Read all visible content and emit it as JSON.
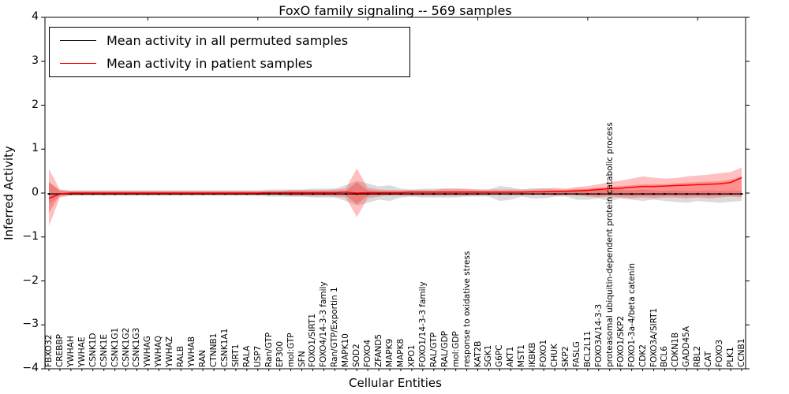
{
  "title": "FoxO family signaling -- 569 samples",
  "legend": {
    "items": [
      {
        "label": "Mean activity in all permuted samples",
        "color": "#000000"
      },
      {
        "label": "Mean activity in patient samples",
        "color": "#ff0000"
      }
    ],
    "position": "upper left"
  },
  "colors": {
    "permuted_line": "#000000",
    "patient_line": "#ff0000",
    "permuted_band": "#999999",
    "patient_band": "#ff3030",
    "axis": "#000000",
    "background": "#ffffff"
  },
  "chart_data": {
    "type": "line",
    "title": "FoxO family signaling -- 569 samples",
    "xlabel": "Cellular Entities",
    "ylabel": "Inferred Activity",
    "ylim": [
      -4,
      4
    ],
    "yticks": [
      4,
      3,
      2,
      1,
      0,
      -1,
      -2,
      -3,
      -4
    ],
    "ytick_labels": [
      "4",
      "3",
      "2",
      "1",
      "0",
      "−1",
      "−2",
      "−3",
      "−4"
    ],
    "grid": false,
    "legend_position": "upper left",
    "categories": [
      "FBXO32",
      "CREBBP",
      "YWHAH",
      "YWHAE",
      "CSNK1D",
      "CSNK1E",
      "CSNK1G1",
      "CSNK1G2",
      "CSNK1G3",
      "YWHAG",
      "YWHAQ",
      "YWHAZ",
      "RALB",
      "YWHAB",
      "RAN",
      "CTNNB1",
      "CSNK1A1",
      "SIRT1",
      "RALA",
      "USP7",
      "Ran/GTP",
      "EP300",
      "mol:GTP",
      "SFN",
      "FOXO1/SIRT1",
      "FOXO4/14-3-3 family",
      "Ran/GTP/Exportin 1",
      "MAPK10",
      "SOD2",
      "FOXO4",
      "ZFAND5",
      "MAPK9",
      "MAPK8",
      "XPO1",
      "FOXO1/14-3-3 family",
      "RAL/GTP",
      "RAL/GDP",
      "mol:GDP",
      "response to oxidative stress",
      "KAT2B",
      "SGK1",
      "G6PC",
      "AKT1",
      "MST1",
      "IKBKB",
      "FOXO1",
      "CHUK",
      "SKP2",
      "FASLG",
      "BCL2L11",
      "FOXO3A/14-3-3",
      "proteasomal ubiquitin-dependent protein catabolic process",
      "FOXO1/SKP2",
      "FOXO1-3a-4/beta catenin",
      "CDK2",
      "FOXO3A/SIRT1",
      "BCL6",
      "CDKN1B",
      "GADD45A",
      "RBL2",
      "CAT",
      "FOXO3",
      "PLK1",
      "CCNB1"
    ],
    "series": [
      {
        "name": "Mean activity in all permuted samples",
        "color": "#000000",
        "values": [
          -0.02,
          -0.02,
          -0.02,
          -0.02,
          -0.02,
          -0.02,
          -0.02,
          -0.02,
          -0.02,
          -0.02,
          -0.02,
          -0.02,
          -0.02,
          -0.02,
          -0.02,
          -0.02,
          -0.02,
          -0.02,
          -0.02,
          -0.02,
          -0.02,
          -0.02,
          -0.02,
          -0.02,
          -0.02,
          -0.02,
          -0.02,
          -0.02,
          -0.02,
          -0.02,
          -0.02,
          -0.02,
          -0.02,
          -0.02,
          -0.02,
          -0.02,
          -0.02,
          -0.02,
          -0.02,
          -0.02,
          -0.02,
          -0.02,
          -0.02,
          -0.02,
          -0.02,
          -0.02,
          -0.02,
          -0.02,
          -0.02,
          -0.02,
          -0.02,
          -0.02,
          -0.02,
          -0.02,
          -0.02,
          -0.02,
          -0.02,
          -0.02,
          -0.02,
          -0.02,
          -0.02,
          -0.02,
          -0.02,
          -0.02
        ]
      },
      {
        "name": "Mean activity in patient samples",
        "color": "#ff0000",
        "values": [
          -0.12,
          -0.02,
          0,
          0,
          0,
          0,
          0,
          0,
          0,
          0,
          0,
          0,
          0,
          0,
          0,
          0,
          0,
          0,
          0,
          0,
          0.01,
          0.01,
          0.01,
          0.01,
          0.01,
          0.01,
          0.01,
          0.02,
          0,
          0.01,
          0.01,
          0.01,
          0.01,
          0.02,
          0.02,
          0.02,
          0.02,
          0.02,
          0.02,
          0.02,
          0.02,
          0.02,
          0.02,
          0.02,
          0.03,
          0.03,
          0.04,
          0.04,
          0.05,
          0.06,
          0.08,
          0.1,
          0.11,
          0.13,
          0.15,
          0.15,
          0.16,
          0.17,
          0.18,
          0.19,
          0.2,
          0.21,
          0.24,
          0.35
        ]
      }
    ],
    "bands": [
      {
        "name": "permuted-samples-range",
        "color": "#999999",
        "opacity": 0.35,
        "high": [
          0.25,
          0.07,
          0.06,
          0.06,
          0.06,
          0.06,
          0.06,
          0.06,
          0.06,
          0.06,
          0.06,
          0.06,
          0.06,
          0.06,
          0.06,
          0.06,
          0.06,
          0.06,
          0.06,
          0.06,
          0.08,
          0.08,
          0.08,
          0.08,
          0.1,
          0.1,
          0.1,
          0.18,
          0.28,
          0.22,
          0.15,
          0.18,
          0.1,
          0.08,
          0.1,
          0.1,
          0.1,
          0.1,
          0.08,
          0.08,
          0.08,
          0.16,
          0.13,
          0.08,
          0.11,
          0.11,
          0.08,
          0.08,
          0.1,
          0.1,
          0.1,
          0.1,
          0.08,
          0.06,
          0.08,
          0.06,
          0.05,
          0.06,
          0.05,
          0.05,
          0.06,
          0.05,
          0.05,
          0.05
        ],
        "low": [
          -0.25,
          -0.07,
          -0.06,
          -0.06,
          -0.06,
          -0.06,
          -0.06,
          -0.06,
          -0.06,
          -0.06,
          -0.06,
          -0.06,
          -0.06,
          -0.06,
          -0.06,
          -0.06,
          -0.06,
          -0.06,
          -0.06,
          -0.06,
          -0.08,
          -0.08,
          -0.08,
          -0.08,
          -0.1,
          -0.1,
          -0.1,
          -0.18,
          -0.28,
          -0.22,
          -0.15,
          -0.18,
          -0.1,
          -0.08,
          -0.1,
          -0.1,
          -0.1,
          -0.1,
          -0.08,
          -0.08,
          -0.08,
          -0.18,
          -0.15,
          -0.08,
          -0.12,
          -0.12,
          -0.08,
          -0.08,
          -0.15,
          -0.15,
          -0.12,
          -0.18,
          -0.12,
          -0.15,
          -0.18,
          -0.15,
          -0.18,
          -0.2,
          -0.22,
          -0.18,
          -0.2,
          -0.22,
          -0.2,
          -0.18
        ]
      },
      {
        "name": "patient-samples-range-outer",
        "color": "#ff3030",
        "opacity": 0.3,
        "high": [
          0.55,
          0.08,
          0.05,
          0.05,
          0.05,
          0.05,
          0.05,
          0.05,
          0.05,
          0.05,
          0.05,
          0.05,
          0.05,
          0.05,
          0.05,
          0.05,
          0.05,
          0.05,
          0.05,
          0.05,
          0.05,
          0.05,
          0.07,
          0.07,
          0.07,
          0.07,
          0.08,
          0.1,
          0.56,
          0.12,
          0.08,
          0.07,
          0.07,
          0.07,
          0.07,
          0.07,
          0.1,
          0.1,
          0.1,
          0.08,
          0.08,
          0.08,
          0.08,
          0.08,
          0.08,
          0.1,
          0.12,
          0.1,
          0.14,
          0.16,
          0.2,
          0.25,
          0.28,
          0.33,
          0.38,
          0.35,
          0.33,
          0.34,
          0.38,
          0.4,
          0.42,
          0.45,
          0.48,
          0.58
        ],
        "low": [
          -0.75,
          -0.1,
          -0.05,
          -0.05,
          -0.05,
          -0.05,
          -0.05,
          -0.05,
          -0.05,
          -0.05,
          -0.05,
          -0.05,
          -0.05,
          -0.05,
          -0.05,
          -0.05,
          -0.05,
          -0.05,
          -0.05,
          -0.05,
          -0.05,
          -0.05,
          -0.07,
          -0.07,
          -0.07,
          -0.07,
          -0.08,
          -0.1,
          -0.55,
          -0.12,
          -0.08,
          -0.06,
          -0.06,
          -0.06,
          -0.06,
          -0.06,
          -0.06,
          -0.06,
          -0.06,
          -0.05,
          -0.05,
          -0.05,
          -0.05,
          -0.05,
          -0.05,
          -0.05,
          -0.06,
          -0.05,
          -0.06,
          -0.08,
          -0.1,
          -0.08,
          -0.1,
          -0.12,
          -0.1,
          -0.12,
          -0.1,
          -0.1,
          -0.12,
          -0.1,
          -0.12,
          -0.1,
          -0.08,
          -0.1
        ]
      },
      {
        "name": "patient-samples-range-inner",
        "color": "#ff0000",
        "opacity": 0.25,
        "high": [
          0.25,
          0.04,
          0.03,
          0.03,
          0.03,
          0.03,
          0.03,
          0.03,
          0.03,
          0.03,
          0.03,
          0.03,
          0.03,
          0.03,
          0.03,
          0.03,
          0.03,
          0.03,
          0.03,
          0.03,
          0.03,
          0.03,
          0.04,
          0.04,
          0.04,
          0.04,
          0.04,
          0.05,
          0.25,
          0.06,
          0.04,
          0.04,
          0.04,
          0.04,
          0.04,
          0.04,
          0.05,
          0.05,
          0.05,
          0.04,
          0.04,
          0.04,
          0.04,
          0.04,
          0.04,
          0.05,
          0.06,
          0.06,
          0.08,
          0.09,
          0.12,
          0.14,
          0.16,
          0.18,
          0.2,
          0.2,
          0.2,
          0.22,
          0.24,
          0.25,
          0.26,
          0.27,
          0.3,
          0.38
        ],
        "low": [
          -0.45,
          -0.05,
          -0.03,
          -0.03,
          -0.03,
          -0.03,
          -0.03,
          -0.03,
          -0.03,
          -0.03,
          -0.03,
          -0.03,
          -0.03,
          -0.03,
          -0.03,
          -0.03,
          -0.03,
          -0.03,
          -0.03,
          -0.03,
          -0.03,
          -0.03,
          -0.04,
          -0.04,
          -0.04,
          -0.04,
          -0.04,
          -0.05,
          -0.25,
          -0.06,
          -0.04,
          -0.04,
          -0.04,
          -0.04,
          -0.04,
          -0.04,
          -0.04,
          -0.04,
          -0.04,
          -0.03,
          -0.03,
          -0.03,
          -0.03,
          -0.03,
          -0.03,
          -0.03,
          -0.04,
          -0.03,
          -0.04,
          -0.05,
          -0.06,
          -0.05,
          -0.06,
          -0.07,
          -0.06,
          -0.07,
          -0.06,
          -0.06,
          -0.07,
          -0.06,
          -0.07,
          -0.06,
          -0.05,
          -0.06
        ]
      }
    ]
  }
}
